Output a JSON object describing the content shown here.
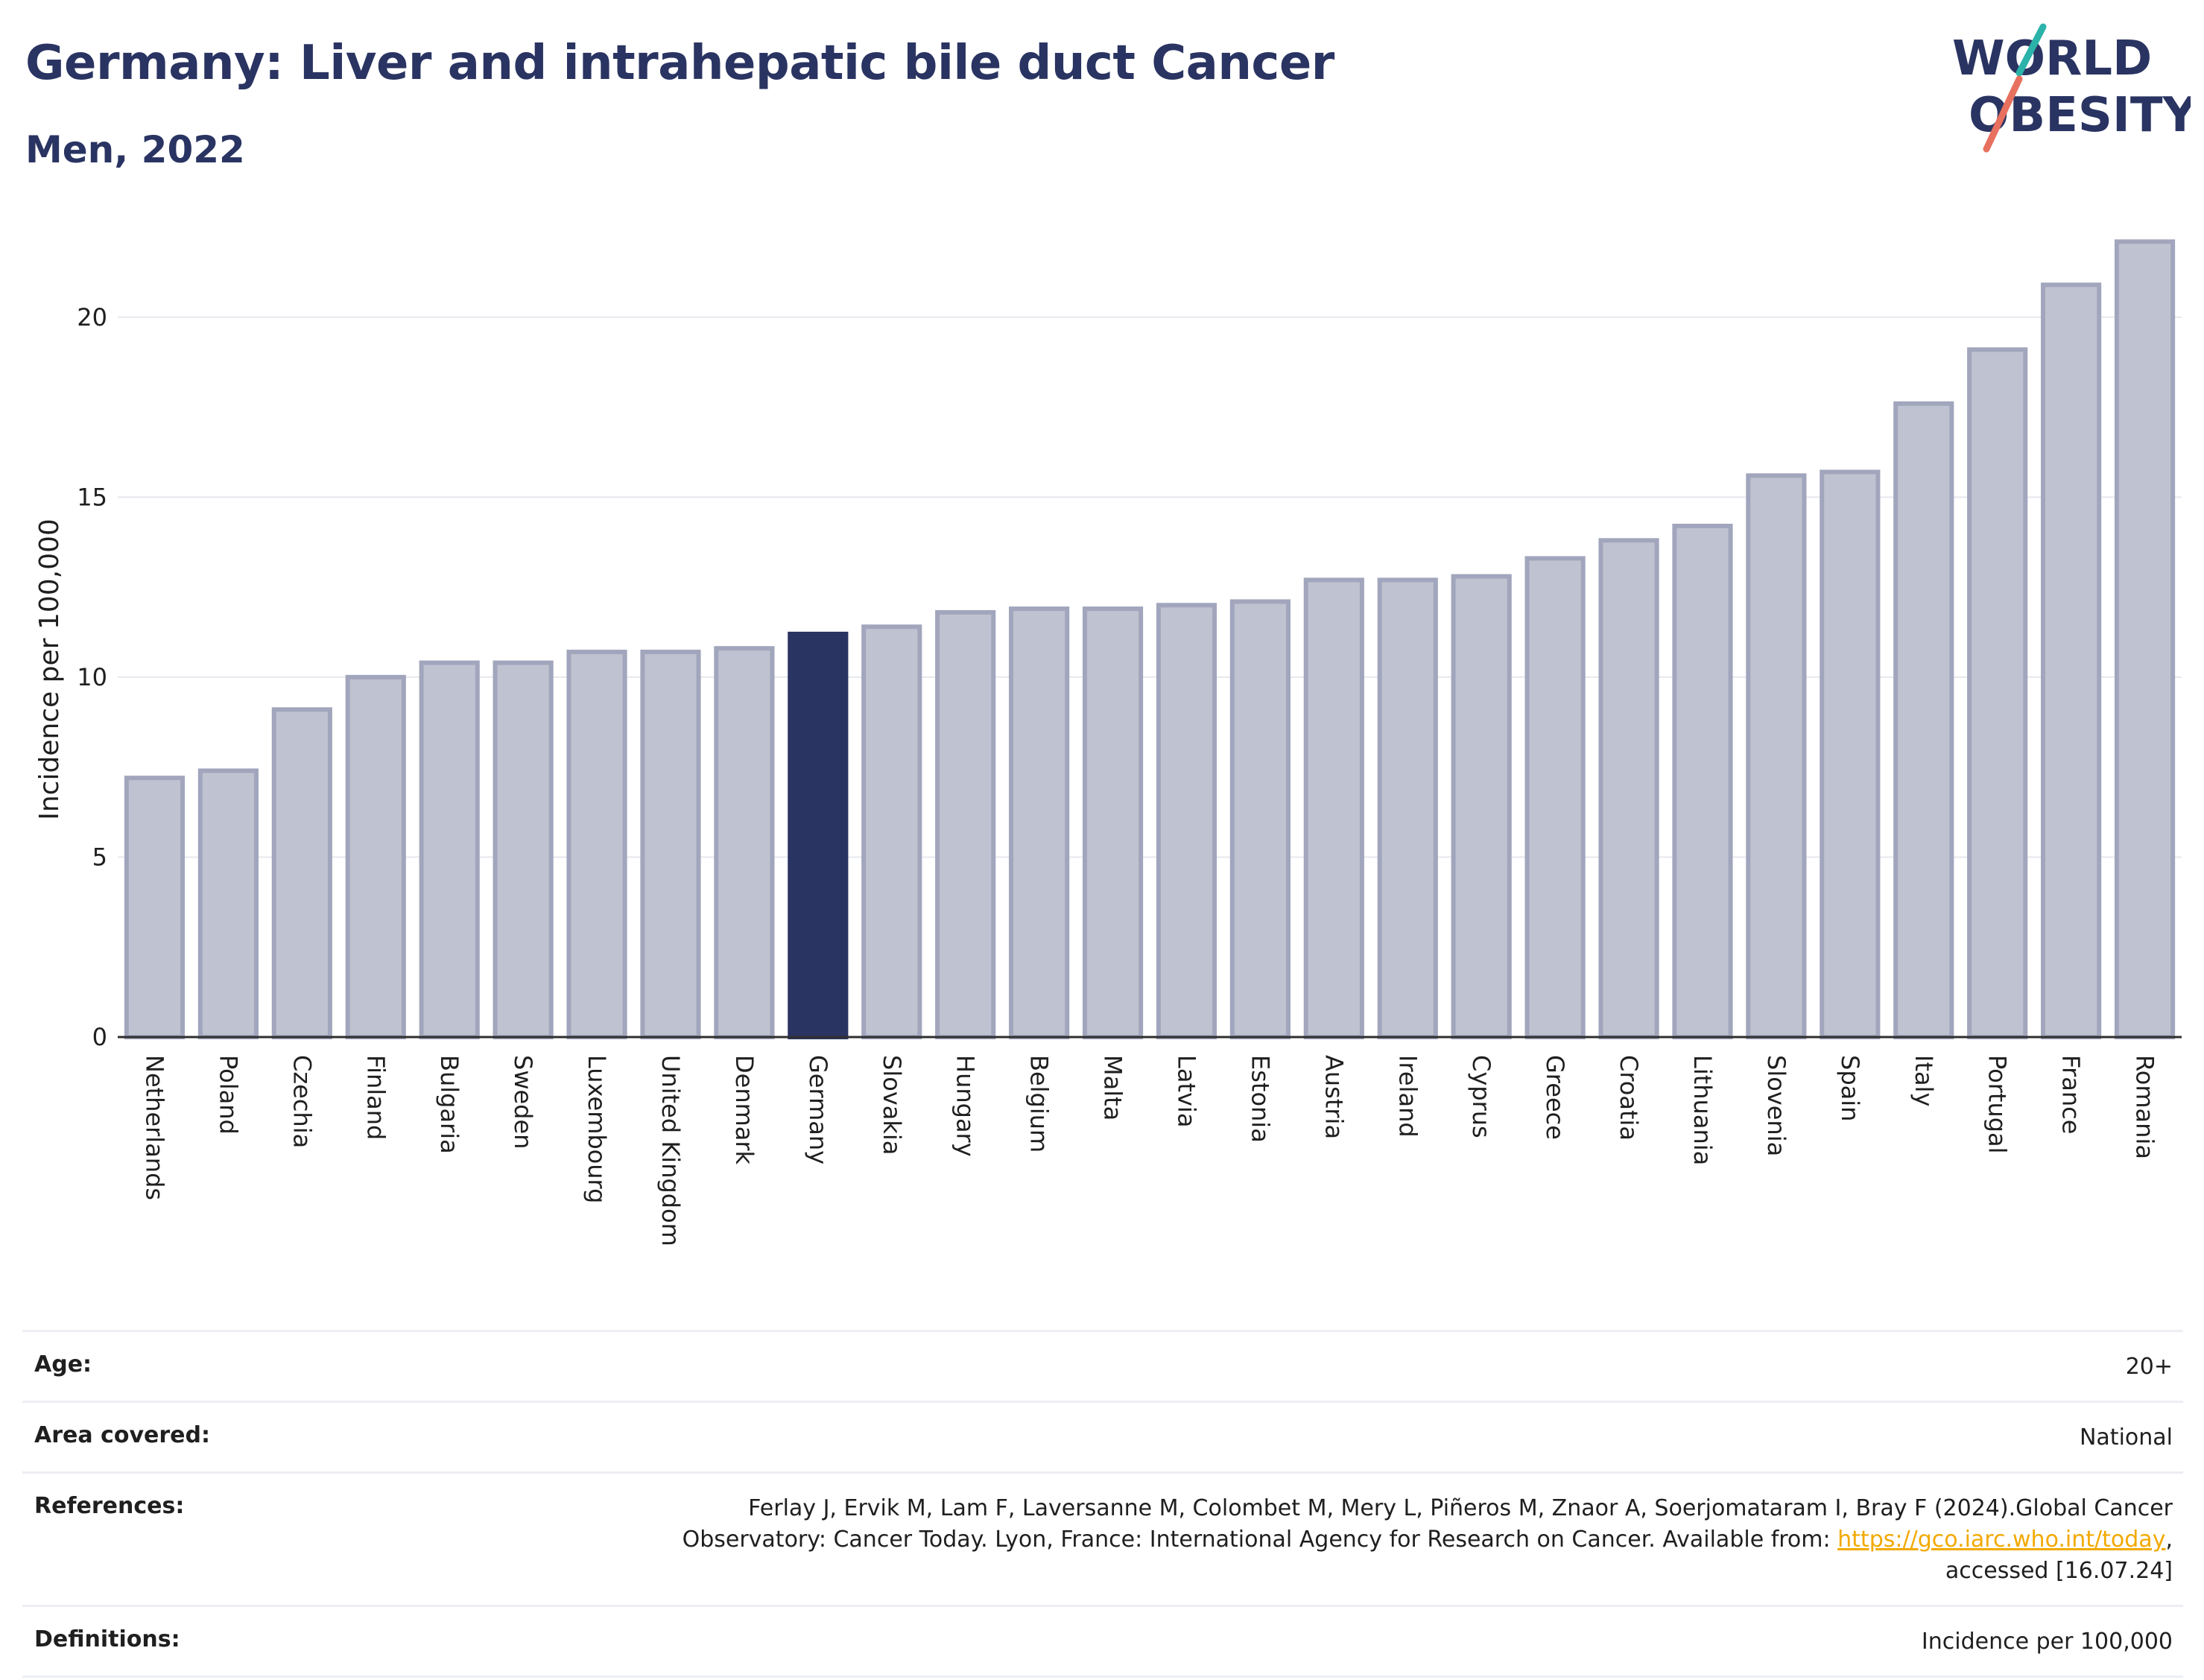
{
  "title": "Germany: Liver and intrahepatic bile duct Cancer",
  "subtitle": "Men, 2022",
  "logo": {
    "line1": "WORLD",
    "line2": "OBESITY"
  },
  "colors": {
    "highlight": "#2a3462",
    "bar": "#bfc2d0",
    "bar_border": "#a1a6bd",
    "title": "#2a3462",
    "link": "#f2a900"
  },
  "chart_data": {
    "type": "bar",
    "title": "Germany: Liver and intrahepatic bile duct Cancer",
    "subtitle": "Men, 2022",
    "ylabel": "Incidence per 100,000",
    "xlabel": "",
    "ylim": [
      0,
      22.5
    ],
    "yticks": [
      0,
      5,
      10,
      15,
      20
    ],
    "grid": true,
    "highlight": "Germany",
    "categories": [
      "Netherlands",
      "Poland",
      "Czechia",
      "Finland",
      "Bulgaria",
      "Sweden",
      "Luxembourg",
      "United Kingdom",
      "Denmark",
      "Germany",
      "Slovakia",
      "Hungary",
      "Belgium",
      "Malta",
      "Latvia",
      "Estonia",
      "Austria",
      "Ireland",
      "Cyprus",
      "Greece",
      "Croatia",
      "Lithuania",
      "Slovenia",
      "Spain",
      "Italy",
      "Portugal",
      "France",
      "Romania"
    ],
    "values": [
      7.2,
      7.4,
      9.1,
      10.0,
      10.4,
      10.4,
      10.7,
      10.7,
      10.8,
      11.2,
      11.4,
      11.8,
      11.9,
      11.9,
      12.0,
      12.1,
      12.7,
      12.7,
      12.8,
      13.3,
      13.8,
      14.2,
      15.6,
      15.7,
      17.6,
      19.1,
      20.9,
      22.1
    ]
  },
  "meta": {
    "age": {
      "label": "Age:",
      "value": "20+"
    },
    "area": {
      "label": "Area covered:",
      "value": "National"
    },
    "references": {
      "label": "References:",
      "text_before": "Ferlay J, Ervik M, Lam F, Laversanne M, Colombet M, Mery L, Piñeros M, Znaor A, Soerjomataram I, Bray F (2024).Global Cancer Observatory: Cancer Today. Lyon, France: International Agency for Research on Cancer. Available from: ",
      "link": "https://gco.iarc.who.int/today",
      "text_after": ", accessed [16.07.24]"
    },
    "definitions": {
      "label": "Definitions:",
      "value": "Incidence per 100,000"
    }
  }
}
